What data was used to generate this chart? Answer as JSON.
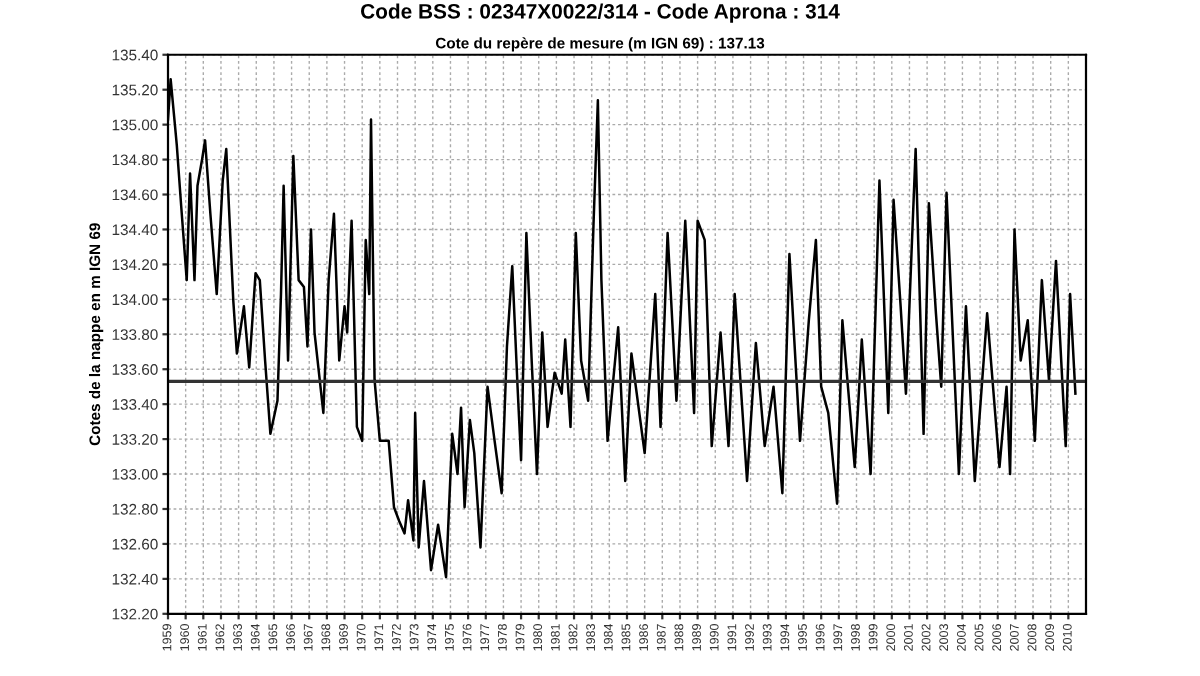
{
  "chart_data": {
    "type": "line",
    "title": "Code BSS : 02347X0022/314 - Code Aprona : 314",
    "subtitle": "Cote du repère de mesure (m IGN 69) : 137.13",
    "ylabel": "Cotes de la nappe en m IGN 69",
    "series": [
      {
        "color": "#000000",
        "x": [
          1959.0,
          1959.15,
          1959.4,
          1959.5,
          1959.75,
          1960.06,
          1960.25,
          1960.5,
          1960.67,
          1960.93,
          1961.1,
          1961.4,
          1961.76,
          1962.1,
          1962.3,
          1962.7,
          1962.9,
          1963.3,
          1963.6,
          1963.96,
          1964.2,
          1964.5,
          1964.8,
          1965.2,
          1965.4,
          1965.55,
          1965.8,
          1966.1,
          1966.4,
          1966.7,
          1966.9,
          1967.1,
          1967.3,
          1967.8,
          1968.1,
          1968.4,
          1968.7,
          1969.0,
          1969.15,
          1969.4,
          1969.7,
          1970.0,
          1970.2,
          1970.4,
          1970.5,
          1970.7,
          1971.0,
          1971.5,
          1971.8,
          1972.1,
          1972.4,
          1972.6,
          1972.9,
          1973.0,
          1973.2,
          1973.5,
          1973.9,
          1974.3,
          1974.75,
          1975.1,
          1975.4,
          1975.6,
          1975.8,
          1976.1,
          1976.35,
          1976.7,
          1977.1,
          1977.5,
          1977.9,
          1978.2,
          1978.5,
          1978.8,
          1979.0,
          1979.3,
          1979.6,
          1979.9,
          1980.2,
          1980.5,
          1980.9,
          1981.3,
          1981.5,
          1981.8,
          1982.1,
          1982.4,
          1982.8,
          1983.1,
          1983.35,
          1983.55,
          1983.9,
          1984.5,
          1984.9,
          1985.25,
          1986.0,
          1986.6,
          1986.9,
          1987.3,
          1987.8,
          1988.3,
          1988.8,
          1989.0,
          1989.4,
          1989.8,
          1990.3,
          1990.75,
          1991.1,
          1991.8,
          1992.3,
          1992.8,
          1993.3,
          1993.8,
          1994.2,
          1994.8,
          1995.3,
          1995.7,
          1996.0,
          1996.4,
          1996.9,
          1997.2,
          1997.9,
          1998.3,
          1998.8,
          1999.3,
          1999.8,
          2000.1,
          2000.5,
          2000.8,
          2001.35,
          2001.8,
          2002.1,
          2002.5,
          2002.8,
          2003.1,
          2003.8,
          2004.2,
          2004.7,
          2005.4,
          2006.1,
          2006.5,
          2006.7,
          2006.95,
          2007.3,
          2007.7,
          2008.1,
          2008.5,
          2008.9,
          2009.3,
          2009.85,
          2010.1,
          2010.4
        ],
        "values": [
          135.03,
          135.26,
          134.99,
          134.88,
          134.53,
          134.11,
          134.72,
          134.11,
          134.65,
          134.8,
          134.91,
          134.49,
          134.03,
          134.68,
          134.86,
          133.99,
          133.69,
          133.96,
          133.61,
          134.15,
          134.11,
          133.65,
          133.23,
          133.42,
          134.03,
          134.65,
          133.65,
          134.82,
          134.11,
          134.07,
          133.73,
          134.4,
          133.81,
          133.35,
          134.11,
          134.49,
          133.65,
          133.96,
          133.81,
          134.45,
          133.27,
          133.19,
          134.34,
          134.03,
          135.03,
          133.54,
          133.19,
          133.19,
          132.81,
          132.73,
          132.66,
          132.85,
          132.62,
          133.35,
          132.58,
          132.96,
          132.45,
          132.71,
          132.41,
          133.23,
          133.0,
          133.38,
          132.81,
          133.31,
          133.12,
          132.58,
          133.5,
          133.19,
          132.89,
          133.73,
          134.19,
          133.5,
          133.08,
          134.38,
          133.65,
          133.0,
          133.81,
          133.27,
          133.58,
          133.46,
          133.77,
          133.27,
          134.38,
          133.65,
          133.42,
          134.42,
          135.14,
          134.11,
          133.19,
          133.84,
          132.96,
          133.69,
          133.12,
          134.03,
          133.27,
          134.38,
          133.42,
          134.45,
          133.35,
          134.45,
          134.34,
          133.16,
          133.81,
          133.16,
          134.03,
          132.96,
          133.75,
          133.16,
          133.5,
          132.89,
          134.26,
          133.19,
          133.88,
          134.34,
          133.5,
          133.35,
          132.83,
          133.88,
          133.04,
          133.77,
          133.0,
          134.68,
          133.35,
          134.57,
          133.96,
          133.46,
          134.86,
          133.23,
          134.55,
          133.92,
          133.5,
          134.61,
          133.0,
          133.96,
          132.96,
          133.92,
          133.04,
          133.5,
          133.0,
          134.4,
          133.65,
          133.88,
          133.19,
          134.11,
          133.54,
          134.22,
          133.16,
          134.03,
          133.46
        ]
      }
    ],
    "ref_lines": [
      {
        "axis": "y",
        "value": 133.53,
        "color": "#333333"
      }
    ],
    "xlim": [
      1959,
      2011
    ],
    "xticks": [
      1959,
      1960,
      1961,
      1962,
      1963,
      1964,
      1965,
      1966,
      1967,
      1968,
      1969,
      1970,
      1971,
      1972,
      1973,
      1974,
      1975,
      1976,
      1977,
      1978,
      1979,
      1980,
      1981,
      1982,
      1983,
      1984,
      1985,
      1986,
      1987,
      1988,
      1989,
      1990,
      1991,
      1992,
      1993,
      1994,
      1995,
      1996,
      1997,
      1998,
      1999,
      2000,
      2001,
      2002,
      2003,
      2004,
      2005,
      2006,
      2007,
      2008,
      2009,
      2010
    ],
    "ylim": [
      132.2,
      135.4
    ],
    "yticks": [
      {
        "value": 132.2,
        "label": "132.20"
      },
      {
        "value": 132.4,
        "label": "132.40"
      },
      {
        "value": 132.6,
        "label": "132.60"
      },
      {
        "value": 132.8,
        "label": "132.80"
      },
      {
        "value": 133.0,
        "label": "133.00"
      },
      {
        "value": 133.2,
        "label": "133.20"
      },
      {
        "value": 133.4,
        "label": "133.40"
      },
      {
        "value": 133.6,
        "label": "133.60"
      },
      {
        "value": 133.8,
        "label": "133.80"
      },
      {
        "value": 134.0,
        "label": "134.00"
      },
      {
        "value": 134.2,
        "label": "134.20"
      },
      {
        "value": 134.4,
        "label": "134.40"
      },
      {
        "value": 134.6,
        "label": "134.60"
      },
      {
        "value": 134.8,
        "label": "134.80"
      },
      {
        "value": 135.0,
        "label": "135.00"
      },
      {
        "value": 135.2,
        "label": "135.20"
      },
      {
        "value": 135.4,
        "label": "135.40"
      }
    ],
    "grid": true,
    "marker": "none",
    "line_style": "solid"
  }
}
